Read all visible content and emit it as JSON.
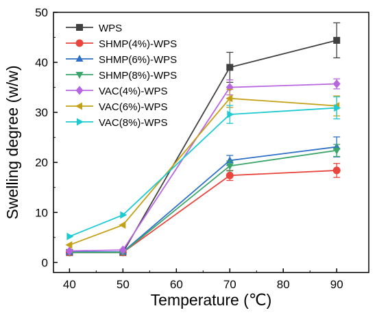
{
  "chart_data": {
    "type": "line",
    "title": "",
    "xlabel": "Temperature (℃)",
    "ylabel": "Swelling degree (w/w)",
    "x": [
      40,
      50,
      70,
      90
    ],
    "xticks": [
      40,
      50,
      60,
      70,
      80,
      90
    ],
    "yticks": [
      0,
      10,
      20,
      30,
      40,
      50
    ],
    "xlim": [
      37,
      96
    ],
    "ylim": [
      -2,
      50
    ],
    "grid": false,
    "legend_position": "top-left",
    "series": [
      {
        "name": "WPS",
        "marker": "square",
        "color": "#404040",
        "values": [
          2.0,
          2.0,
          39.0,
          44.4
        ],
        "errors": [
          0.3,
          0.3,
          3.0,
          3.5
        ]
      },
      {
        "name": "SHMP(4%)-WPS",
        "marker": "circle",
        "color": "#e8453c",
        "values": [
          2.0,
          2.0,
          17.4,
          18.4
        ],
        "errors": [
          0.3,
          0.3,
          1.0,
          1.4
        ]
      },
      {
        "name": "SHMP(6%)-WPS",
        "marker": "triangle-up",
        "color": "#2e6fc8",
        "values": [
          2.1,
          2.1,
          20.4,
          23.1
        ],
        "errors": [
          0.3,
          0.3,
          1.0,
          2.0
        ]
      },
      {
        "name": "SHMP(8%)-WPS",
        "marker": "triangle-down",
        "color": "#3aa66a",
        "values": [
          2.0,
          2.0,
          19.3,
          22.4
        ],
        "errors": [
          0.3,
          0.3,
          1.0,
          1.2
        ]
      },
      {
        "name": "VAC(4%)-WPS",
        "marker": "diamond",
        "color": "#b866e0",
        "values": [
          2.3,
          2.5,
          35.0,
          35.7
        ],
        "errors": [
          0.3,
          0.3,
          1.5,
          1.0
        ]
      },
      {
        "name": "VAC(6%)-WPS",
        "marker": "triangle-left",
        "color": "#c4a016",
        "values": [
          3.5,
          7.5,
          32.8,
          31.3
        ],
        "errors": [
          0.3,
          0.3,
          1.8,
          2.0
        ]
      },
      {
        "name": "VAC(8%)-WPS",
        "marker": "triangle-right",
        "color": "#1ecad2",
        "values": [
          5.2,
          9.5,
          29.6,
          30.9
        ],
        "errors": [
          0.3,
          0.3,
          1.8,
          2.2
        ]
      }
    ]
  }
}
